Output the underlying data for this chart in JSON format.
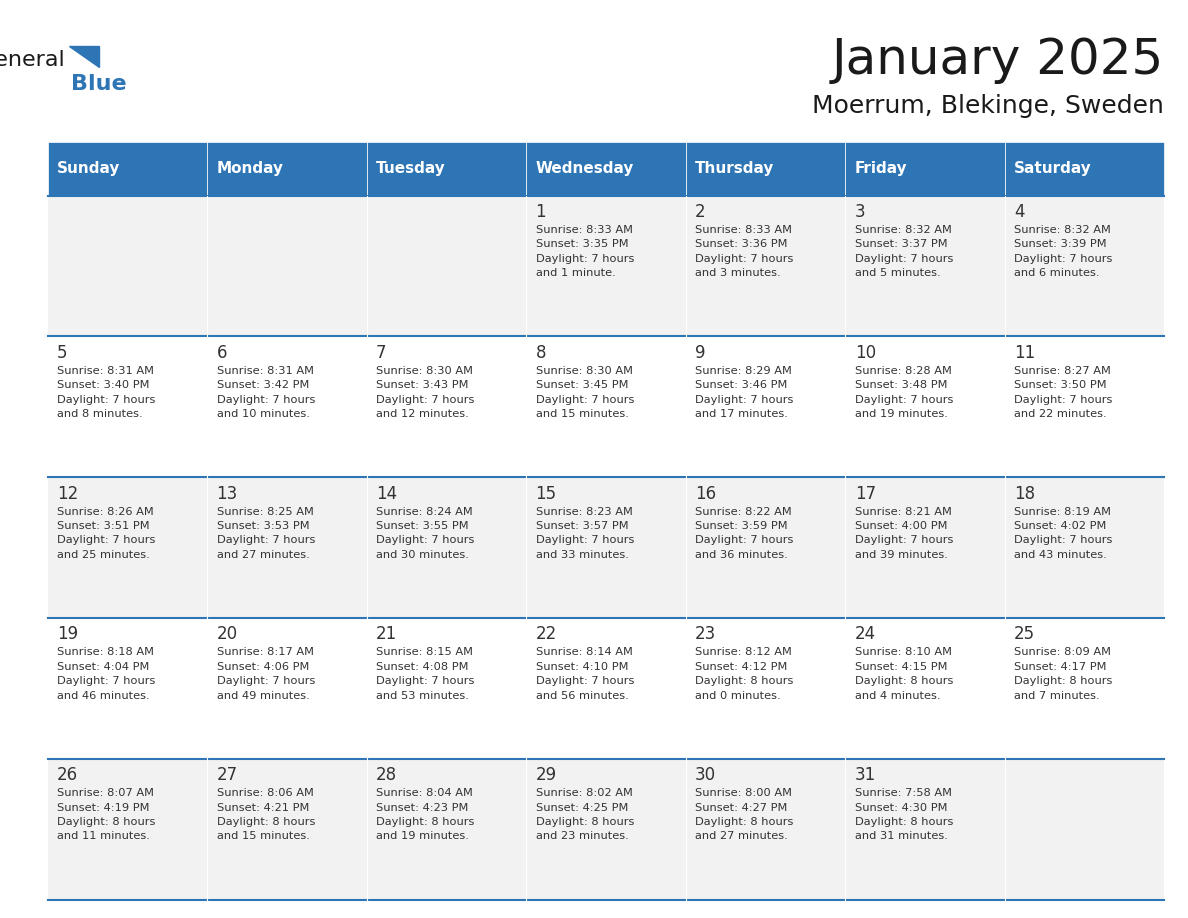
{
  "title": "January 2025",
  "subtitle": "Moerrum, Blekinge, Sweden",
  "header_bg": "#2E75B6",
  "header_text": "#FFFFFF",
  "header_days": [
    "Sunday",
    "Monday",
    "Tuesday",
    "Wednesday",
    "Thursday",
    "Friday",
    "Saturday"
  ],
  "row_bg_even": "#F2F2F2",
  "row_bg_odd": "#FFFFFF",
  "separator_color": "#2E75B6",
  "day_number_color": "#333333",
  "cell_text_color": "#333333",
  "background_color": "#FFFFFF",
  "weeks": [
    {
      "days": [
        {
          "date": "",
          "sunrise": "",
          "sunset": "",
          "daylight": ""
        },
        {
          "date": "",
          "sunrise": "",
          "sunset": "",
          "daylight": ""
        },
        {
          "date": "",
          "sunrise": "",
          "sunset": "",
          "daylight": ""
        },
        {
          "date": "1",
          "sunrise": "8:33 AM",
          "sunset": "3:35 PM",
          "daylight": "7 hours\nand 1 minute."
        },
        {
          "date": "2",
          "sunrise": "8:33 AM",
          "sunset": "3:36 PM",
          "daylight": "7 hours\nand 3 minutes."
        },
        {
          "date": "3",
          "sunrise": "8:32 AM",
          "sunset": "3:37 PM",
          "daylight": "7 hours\nand 5 minutes."
        },
        {
          "date": "4",
          "sunrise": "8:32 AM",
          "sunset": "3:39 PM",
          "daylight": "7 hours\nand 6 minutes."
        }
      ]
    },
    {
      "days": [
        {
          "date": "5",
          "sunrise": "8:31 AM",
          "sunset": "3:40 PM",
          "daylight": "7 hours\nand 8 minutes."
        },
        {
          "date": "6",
          "sunrise": "8:31 AM",
          "sunset": "3:42 PM",
          "daylight": "7 hours\nand 10 minutes."
        },
        {
          "date": "7",
          "sunrise": "8:30 AM",
          "sunset": "3:43 PM",
          "daylight": "7 hours\nand 12 minutes."
        },
        {
          "date": "8",
          "sunrise": "8:30 AM",
          "sunset": "3:45 PM",
          "daylight": "7 hours\nand 15 minutes."
        },
        {
          "date": "9",
          "sunrise": "8:29 AM",
          "sunset": "3:46 PM",
          "daylight": "7 hours\nand 17 minutes."
        },
        {
          "date": "10",
          "sunrise": "8:28 AM",
          "sunset": "3:48 PM",
          "daylight": "7 hours\nand 19 minutes."
        },
        {
          "date": "11",
          "sunrise": "8:27 AM",
          "sunset": "3:50 PM",
          "daylight": "7 hours\nand 22 minutes."
        }
      ]
    },
    {
      "days": [
        {
          "date": "12",
          "sunrise": "8:26 AM",
          "sunset": "3:51 PM",
          "daylight": "7 hours\nand 25 minutes."
        },
        {
          "date": "13",
          "sunrise": "8:25 AM",
          "sunset": "3:53 PM",
          "daylight": "7 hours\nand 27 minutes."
        },
        {
          "date": "14",
          "sunrise": "8:24 AM",
          "sunset": "3:55 PM",
          "daylight": "7 hours\nand 30 minutes."
        },
        {
          "date": "15",
          "sunrise": "8:23 AM",
          "sunset": "3:57 PM",
          "daylight": "7 hours\nand 33 minutes."
        },
        {
          "date": "16",
          "sunrise": "8:22 AM",
          "sunset": "3:59 PM",
          "daylight": "7 hours\nand 36 minutes."
        },
        {
          "date": "17",
          "sunrise": "8:21 AM",
          "sunset": "4:00 PM",
          "daylight": "7 hours\nand 39 minutes."
        },
        {
          "date": "18",
          "sunrise": "8:19 AM",
          "sunset": "4:02 PM",
          "daylight": "7 hours\nand 43 minutes."
        }
      ]
    },
    {
      "days": [
        {
          "date": "19",
          "sunrise": "8:18 AM",
          "sunset": "4:04 PM",
          "daylight": "7 hours\nand 46 minutes."
        },
        {
          "date": "20",
          "sunrise": "8:17 AM",
          "sunset": "4:06 PM",
          "daylight": "7 hours\nand 49 minutes."
        },
        {
          "date": "21",
          "sunrise": "8:15 AM",
          "sunset": "4:08 PM",
          "daylight": "7 hours\nand 53 minutes."
        },
        {
          "date": "22",
          "sunrise": "8:14 AM",
          "sunset": "4:10 PM",
          "daylight": "7 hours\nand 56 minutes."
        },
        {
          "date": "23",
          "sunrise": "8:12 AM",
          "sunset": "4:12 PM",
          "daylight": "8 hours\nand 0 minutes."
        },
        {
          "date": "24",
          "sunrise": "8:10 AM",
          "sunset": "4:15 PM",
          "daylight": "8 hours\nand 4 minutes."
        },
        {
          "date": "25",
          "sunrise": "8:09 AM",
          "sunset": "4:17 PM",
          "daylight": "8 hours\nand 7 minutes."
        }
      ]
    },
    {
      "days": [
        {
          "date": "26",
          "sunrise": "8:07 AM",
          "sunset": "4:19 PM",
          "daylight": "8 hours\nand 11 minutes."
        },
        {
          "date": "27",
          "sunrise": "8:06 AM",
          "sunset": "4:21 PM",
          "daylight": "8 hours\nand 15 minutes."
        },
        {
          "date": "28",
          "sunrise": "8:04 AM",
          "sunset": "4:23 PM",
          "daylight": "8 hours\nand 19 minutes."
        },
        {
          "date": "29",
          "sunrise": "8:02 AM",
          "sunset": "4:25 PM",
          "daylight": "8 hours\nand 23 minutes."
        },
        {
          "date": "30",
          "sunrise": "8:00 AM",
          "sunset": "4:27 PM",
          "daylight": "8 hours\nand 27 minutes."
        },
        {
          "date": "31",
          "sunrise": "7:58 AM",
          "sunset": "4:30 PM",
          "daylight": "8 hours\nand 31 minutes."
        },
        {
          "date": "",
          "sunrise": "",
          "sunset": "",
          "daylight": ""
        }
      ]
    }
  ],
  "logo_text_general": "General",
  "logo_text_blue": "Blue",
  "logo_triangle_color": "#2E75B6"
}
